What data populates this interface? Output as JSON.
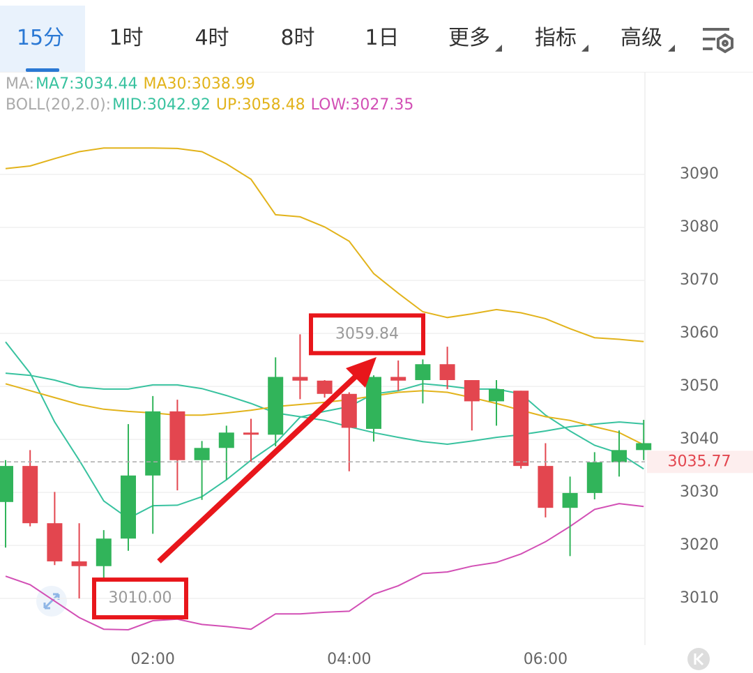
{
  "tabs": [
    "15分",
    "1时",
    "4时",
    "8时",
    "1日",
    "更多",
    "指标",
    "高级"
  ],
  "chart_data": {
    "type": "candlestick",
    "indicators": [
      {
        "label": "MA:",
        "items": [
          {
            "text": "MA7:3034.44",
            "color": "#38c29f"
          },
          {
            "text": "MA30:3038.99",
            "color": "#e2b31b"
          }
        ]
      },
      {
        "label": "BOLL(20,2.0):",
        "items": [
          {
            "text": "MID:3042.92",
            "color": "#38c29f"
          },
          {
            "text": "UP:3058.48",
            "color": "#e2b31b"
          },
          {
            "text": "LOW:3027.35",
            "color": "#d24fb5"
          }
        ]
      }
    ],
    "categories": [
      null,
      null,
      null,
      null,
      null,
      null,
      "02:00",
      null,
      null,
      null,
      null,
      null,
      null,
      null,
      "04:00",
      null,
      null,
      null,
      null,
      null,
      null,
      null,
      "06:00",
      null,
      null,
      null,
      null
    ],
    "open": [
      3028.2,
      3035.0,
      3024.2,
      3017.0,
      3016.1,
      3021.3,
      3033.2,
      3045.3,
      3036.1,
      3038.4,
      3041.3,
      3040.9,
      3051.8,
      3051.1,
      3048.6,
      3042.0,
      3051.8,
      3051.2,
      3054.2,
      3051.2,
      3047.2,
      3049.2,
      3035.0,
      3027.1,
      3029.9,
      3035.7,
      3038.0
    ],
    "high": [
      3036.1,
      3038.0,
      3030.1,
      3024.2,
      3022.9,
      3042.9,
      3048.2,
      3047.5,
      3039.7,
      3042.6,
      3043.9,
      3055.5,
      3059.84,
      3051.2,
      3048.9,
      3052.1,
      3054.9,
      3055.1,
      3057.5,
      3051.2,
      3051.2,
      3049.2,
      3039.3,
      3033.0,
      3037.6,
      3041.7,
      3043.7
    ],
    "low": [
      3019.6,
      3023.6,
      3016.3,
      3010.0,
      3013.7,
      3019.0,
      3022.2,
      3030.4,
      3028.6,
      3032.4,
      3035.8,
      3038.7,
      3047.6,
      3047.9,
      3034.0,
      3039.6,
      3049.2,
      3046.8,
      3049.5,
      3041.7,
      3042.6,
      3034.5,
      3025.3,
      3018.0,
      3028.7,
      3033.0,
      3036.1
    ],
    "close": [
      3035.0,
      3024.2,
      3017.0,
      3016.1,
      3021.3,
      3033.2,
      3045.3,
      3036.1,
      3038.4,
      3041.3,
      3040.9,
      3051.8,
      3051.1,
      3048.6,
      3042.2,
      3051.8,
      3051.1,
      3054.2,
      3051.2,
      3047.2,
      3049.5,
      3035.0,
      3027.1,
      3029.9,
      3035.7,
      3038.0,
      3039.3
    ],
    "up_color": "#31b45a",
    "down_color": "#e3464f",
    "series": [
      {
        "name": "UP",
        "color": "#e2b31b",
        "values": [
          3091.1,
          3091.6,
          3093.0,
          3094.3,
          3095.0,
          3095.0,
          3095.0,
          3094.9,
          3094.3,
          3092.0,
          3089.1,
          3082.4,
          3082.0,
          3080.1,
          3077.4,
          3071.3,
          3067.6,
          3064.1,
          3063.0,
          3063.7,
          3064.5,
          3063.9,
          3062.8,
          3060.9,
          3059.2,
          3058.9,
          3058.48
        ]
      },
      {
        "name": "LOW",
        "color": "#d24fb5",
        "values": [
          3014.2,
          3012.6,
          3009.5,
          3006.4,
          3004.2,
          3004.1,
          3005.8,
          3006.1,
          3005.1,
          3004.7,
          3004.2,
          3007.1,
          3007.1,
          3007.4,
          3007.6,
          3010.8,
          3012.4,
          3014.7,
          3015.0,
          3016.1,
          3016.8,
          3018.4,
          3020.7,
          3023.6,
          3026.8,
          3027.9,
          3027.35
        ]
      },
      {
        "name": "MID",
        "color": "#38c29f",
        "values": [
          3052.5,
          3052.1,
          3051.2,
          3049.9,
          3049.5,
          3049.5,
          3050.3,
          3050.3,
          3049.6,
          3048.3,
          3046.8,
          3045.0,
          3044.3,
          3043.6,
          3042.4,
          3041.3,
          3040.4,
          3039.6,
          3039.1,
          3039.7,
          3040.4,
          3040.9,
          3041.6,
          3042.4,
          3042.9,
          3043.3,
          3042.92
        ]
      },
      {
        "name": "MA7",
        "color": "#38c29f",
        "values": [
          3058.4,
          3052.5,
          3043.3,
          3036.1,
          3028.4,
          3025.1,
          3027.5,
          3027.6,
          3029.2,
          3032.4,
          3036.1,
          3039.3,
          3044.2,
          3045.3,
          3046.2,
          3048.6,
          3049.2,
          3050.5,
          3050.1,
          3049.5,
          3049.5,
          3048.6,
          3044.6,
          3041.6,
          3038.9,
          3037.4,
          3034.44
        ]
      },
      {
        "name": "MA30",
        "color": "#e2b31b",
        "values": [
          3050.5,
          3049.2,
          3047.9,
          3046.6,
          3045.7,
          3045.3,
          3045.0,
          3044.6,
          3044.6,
          3045.0,
          3045.5,
          3046.2,
          3046.6,
          3047.0,
          3047.5,
          3048.2,
          3048.9,
          3049.2,
          3048.9,
          3047.9,
          3046.8,
          3045.5,
          3044.3,
          3043.6,
          3042.4,
          3041.3,
          3038.99
        ]
      }
    ],
    "ylim": [
      3001.2,
      3109.1
    ],
    "yticks": [
      3010,
      3020,
      3030,
      3040,
      3050,
      3060,
      3070,
      3080,
      3090
    ],
    "grid": true,
    "last_price": 3035.77,
    "annotations": [
      3059.84,
      {
        "value": 3010,
        "label": "3010.00"
      }
    ]
  }
}
